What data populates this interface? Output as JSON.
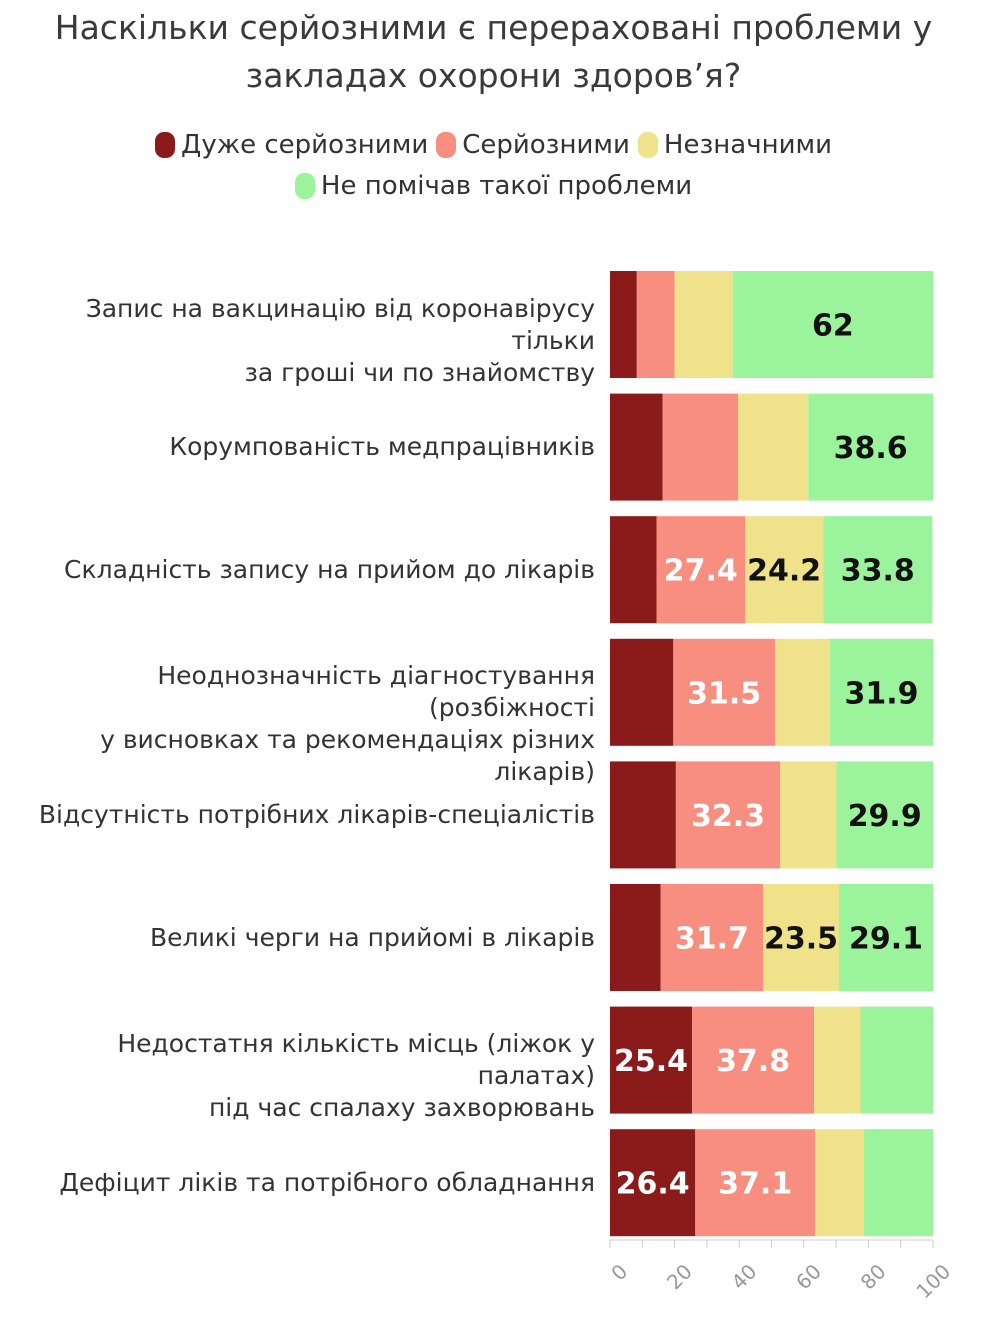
{
  "title_lines": [
    "Наскільки серйозними є перераховані проблеми у",
    "закладах охорони здоров’я?"
  ],
  "legend": {
    "rows": [
      [
        {
          "label": "Дуже серйозними",
          "color": "#8b1a1a"
        },
        {
          "label": "Серйозними",
          "color": "#f88e7f"
        },
        {
          "label": "Незначними",
          "color": "#efe28b"
        }
      ],
      [
        {
          "label": "Не помічав такої проблеми",
          "color": "#9bf49b"
        }
      ]
    ]
  },
  "chart_data": {
    "type": "bar",
    "orientation": "horizontal",
    "stacked": true,
    "title": "Наскільки серйозними є перераховані проблеми у закладах охорони здоров’я?",
    "xlim": [
      0,
      100
    ],
    "xticks": [
      "0",
      "20",
      "40",
      "60",
      "80",
      "100"
    ],
    "categories": [
      [
        "Запис на вакцинацію від коронавірусу тільки",
        "за гроші чи по знайомству"
      ],
      [
        "Корумпованість медпрацівників"
      ],
      [
        "Складність запису на прийом до лікарів"
      ],
      [
        "Неоднозначність діагностування (розбіжності",
        "у висновках та рекомендаціях різних лікарів)"
      ],
      [
        "Відсутність потрібних лікарів-спеціалістів"
      ],
      [
        "Великі черги на прийомі в лікарів"
      ],
      [
        "Недостатня кількість місць (ліжок у палатах)",
        "під час спалаху захворювань"
      ],
      [
        "Дефіцит ліків та потрібного обладнання"
      ]
    ],
    "series": [
      {
        "name": "Дуже серйозними",
        "color": "#8b1a1a",
        "values": [
          8.3,
          16.3,
          14.4,
          19.6,
          20.4,
          15.7,
          25.4,
          26.4
        ],
        "labels": [
          "",
          "",
          "",
          "",
          "",
          "",
          "25.4",
          "26.4"
        ],
        "label_color": "#ffffff"
      },
      {
        "name": "Серйозними",
        "color": "#f88e7f",
        "values": [
          11.7,
          23.4,
          27.4,
          31.5,
          32.3,
          31.7,
          37.8,
          37.1
        ],
        "labels": [
          "",
          "",
          "27.4",
          "31.5",
          "32.3",
          "31.7",
          "37.8",
          "37.1"
        ],
        "label_color": "#ffffff"
      },
      {
        "name": "Незначними",
        "color": "#efe28b",
        "values": [
          18.0,
          21.7,
          24.2,
          17.0,
          17.4,
          23.5,
          14.4,
          15.1
        ],
        "labels": [
          "",
          "",
          "24.2",
          "",
          "",
          "23.5",
          "",
          ""
        ],
        "label_color": "#111111"
      },
      {
        "name": "Не помічав такої проблеми",
        "color": "#9bf49b",
        "values": [
          62,
          38.6,
          33.8,
          31.9,
          29.9,
          29.1,
          22.4,
          21.4
        ],
        "labels": [
          "62",
          "38.6",
          "33.8",
          "31.9",
          "29.9",
          "29.1",
          "",
          ""
        ],
        "label_color": "#111111"
      }
    ]
  }
}
